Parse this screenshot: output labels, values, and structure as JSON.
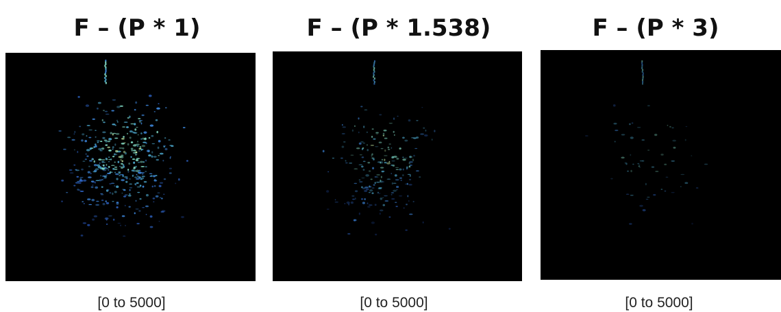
{
  "panels": [
    {
      "title": "F – (P * 1)",
      "range": "[0 to 5000]"
    },
    {
      "title": "F – (P * 1.538)",
      "range": "[0 to 5000]"
    },
    {
      "title": "F – (P * 3)",
      "range": "[0 to 5000]"
    }
  ]
}
